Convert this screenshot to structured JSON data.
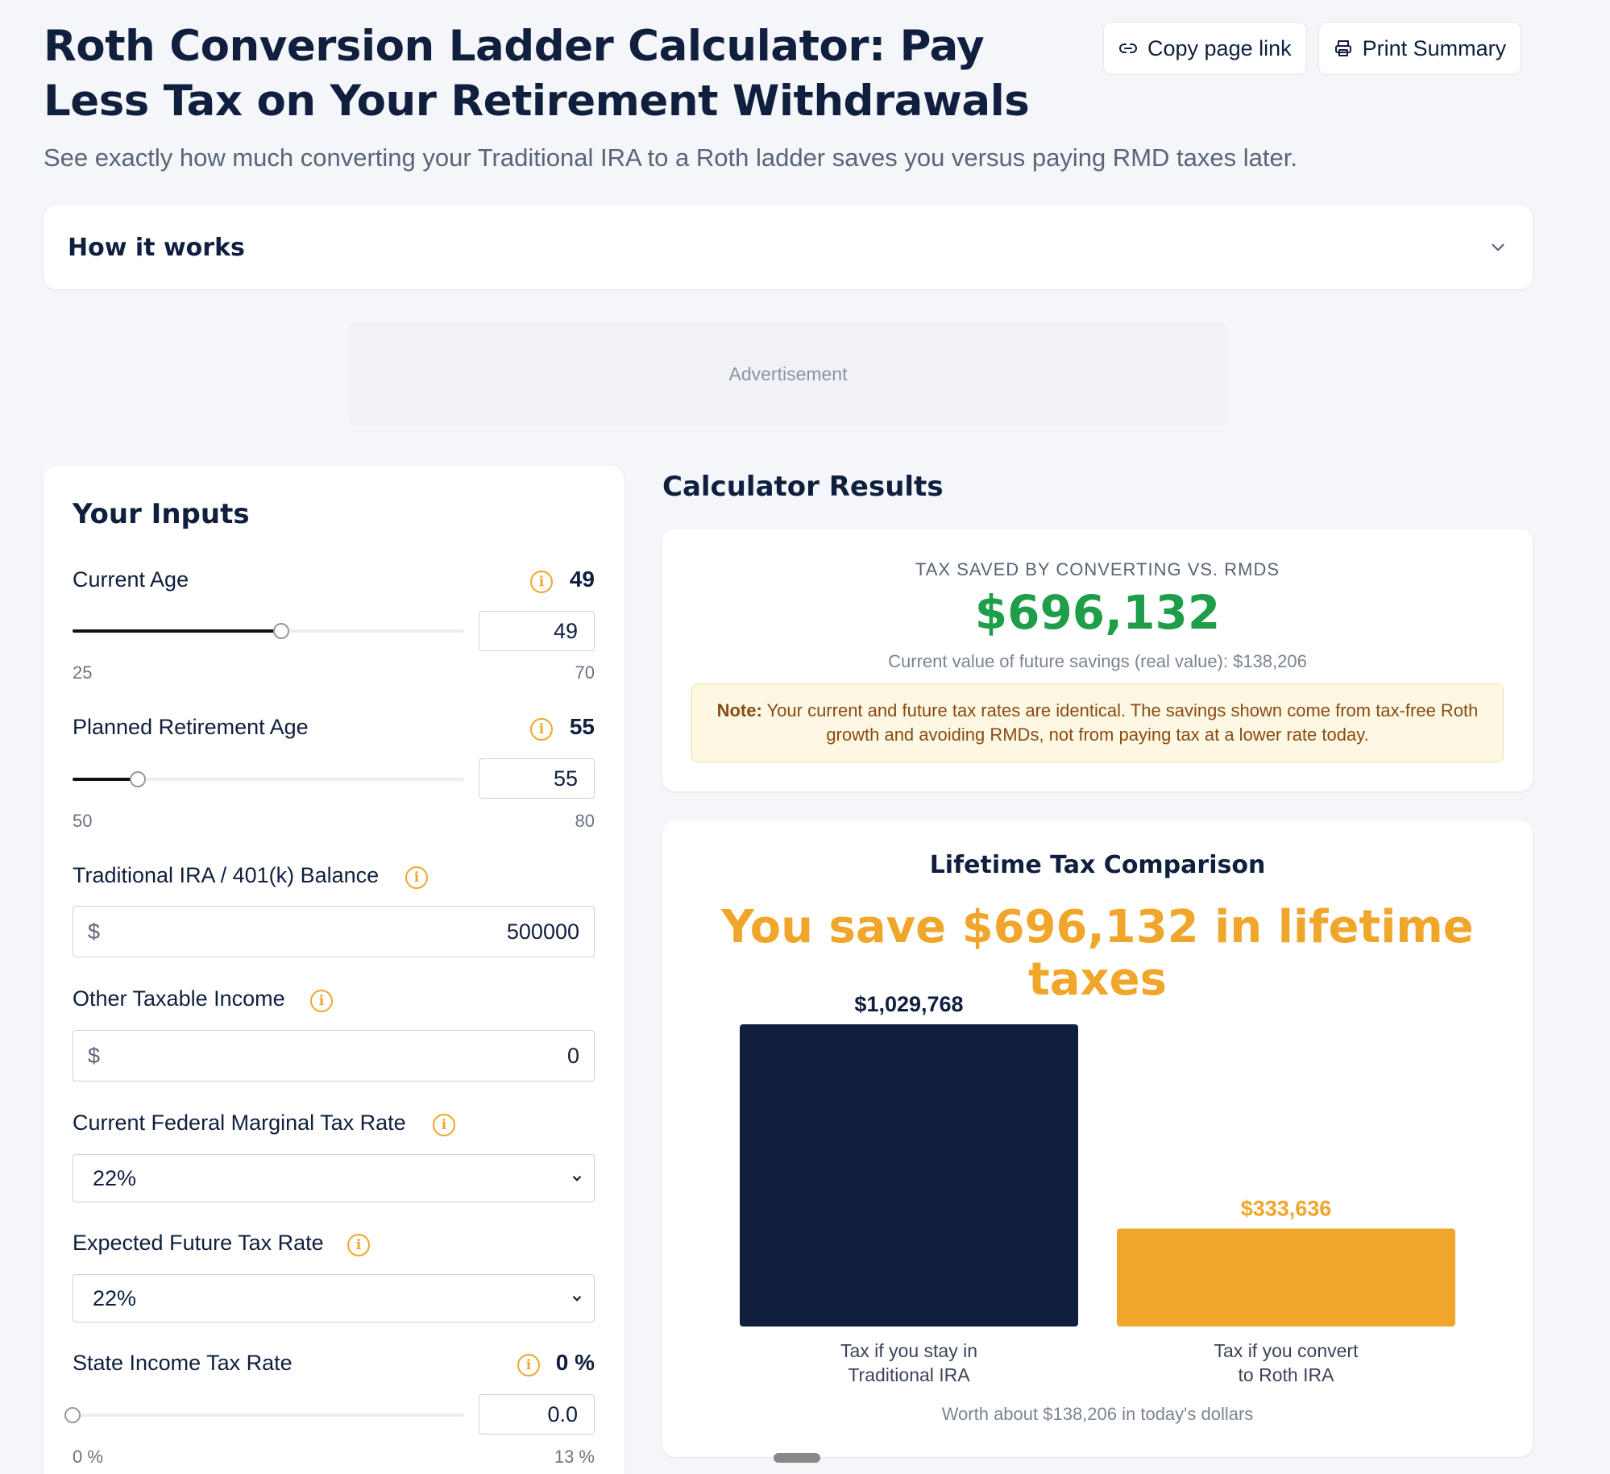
{
  "header": {
    "title": "Roth Conversion Ladder Calculator: Pay Less Tax on Your Retirement Withdrawals",
    "subtitle": "See exactly how much converting your Traditional IRA to a Roth ladder saves you versus paying RMD taxes later."
  },
  "actions": {
    "copy_label": "Copy page link",
    "print_label": "Print Summary"
  },
  "how_it_works": {
    "label": "How it works"
  },
  "ad": {
    "label": "Advertisement"
  },
  "inputs": {
    "title": "Your Inputs",
    "current_age": {
      "label": "Current Age",
      "value": "49",
      "box": "49",
      "min": "25",
      "max": "70",
      "fraction": 0.533
    },
    "retirement_age": {
      "label": "Planned Retirement Age",
      "value": "55",
      "box": "55",
      "min": "50",
      "max": "80",
      "fraction": 0.167
    },
    "ira_balance": {
      "label": "Traditional IRA / 401(k) Balance",
      "currency": "$",
      "value": "500000"
    },
    "other_income": {
      "label": "Other Taxable Income",
      "currency": "$",
      "value": "0"
    },
    "current_rate": {
      "label": "Current Federal Marginal Tax Rate",
      "value": "22%"
    },
    "future_rate": {
      "label": "Expected Future Tax Rate",
      "value": "22%"
    },
    "state_rate": {
      "label": "State Income Tax Rate",
      "value": "0 %",
      "box": "0.0",
      "min": "0 %",
      "max": "13 %",
      "fraction": 0
    }
  },
  "results": {
    "title": "Calculator Results",
    "label": "TAX SAVED BY CONVERTING VS. RMDS",
    "amount": "$696,132",
    "sub": "Current value of future savings (real value): $138,206",
    "note_bold": "Note:",
    "note_text": " Your current and future tax rates are identical. The savings shown come from tax-free Roth growth and avoiding RMDs, not from paying tax at a lower rate today."
  },
  "chart_section": {
    "title": "Lifetime Tax Comparison",
    "headline": "You save $696,132 in lifetime taxes",
    "footer": "Worth about $138,206 in today's dollars"
  },
  "chart_data": {
    "type": "bar",
    "title": "Lifetime Tax Comparison",
    "categories": [
      "Tax if you stay in Traditional IRA",
      "Tax if you convert to Roth IRA"
    ],
    "category_lines": [
      [
        "Tax if you stay in",
        "Traditional IRA"
      ],
      [
        "Tax if you convert",
        "to Roth IRA"
      ]
    ],
    "values": [
      1029768,
      333636
    ],
    "value_labels": [
      "$1,029,768",
      "$333,636"
    ],
    "colors": [
      "#0f1f3d",
      "#f0a52b"
    ],
    "label_colors": [
      "#0f1f3d",
      "#f0a52b"
    ],
    "ylim": [
      0,
      1029768
    ]
  }
}
